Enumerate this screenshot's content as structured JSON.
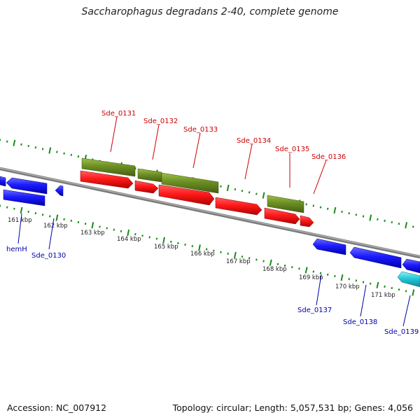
{
  "title": "Saccharophagus degradans 2-40, complete genome",
  "footer": {
    "accession": "Accession: NC_007912",
    "stats": "Topology: circular; Length: 5,057,531 bp; Genes: 4,056"
  },
  "colors": {
    "backbone": "#8a8a8a",
    "tick": "#1a8a1a",
    "forward_cds": "#ff1a1a",
    "forward_gene": "#6b8e23",
    "reverse_cds": "#1a1aff",
    "reverse_gene": "#1a1aff",
    "reverse_other": "#22c8d8",
    "label_forward": "#cc0000",
    "label_reverse": "#0000aa"
  },
  "scale_labels": [
    "161 kbp",
    "162 kbp",
    "163 kbp",
    "164 kbp",
    "165 kbp",
    "166 kbp",
    "167 kbp",
    "168 kbp",
    "169 kbp",
    "170 kbp",
    "171 kbp"
  ],
  "forward_labels": [
    "Sde_0131",
    "Sde_0132",
    "Sde_0133",
    "Sde_0134",
    "Sde_0135",
    "Sde_0136"
  ],
  "reverse_labels": [
    "hemH",
    "Sde_0130",
    "Sde_0137",
    "Sde_0138",
    "Sde_0139"
  ]
}
